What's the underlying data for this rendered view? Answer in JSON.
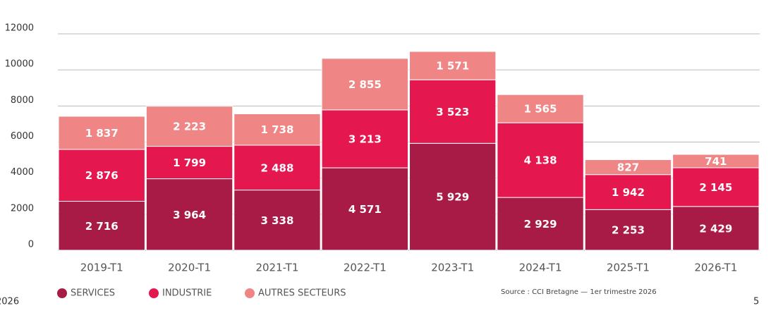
{
  "chart_data": {
    "type": "stacked_bar",
    "categories": [
      "2019-T1",
      "2020-T1",
      "2021-T1",
      "2022-T1",
      "2023-T1",
      "2024-T1",
      "2025-T1",
      "2026-T1"
    ],
    "series": [
      {
        "name": "SERVICES",
        "color": "#a71b46",
        "values": [
          2716,
          3964,
          3338,
          4571,
          5929,
          2929,
          2253,
          2429
        ],
        "value_labels": [
          "2 716",
          "3 964",
          "3 338",
          "4 571",
          "5 929",
          "2 929",
          "2 253",
          "2 429"
        ]
      },
      {
        "name": "INDUSTRIE",
        "color": "#e5174f",
        "values": [
          2876,
          1799,
          2488,
          3213,
          3523,
          4138,
          1942,
          2145
        ],
        "value_labels": [
          "2 876",
          "1 799",
          "2 488",
          "3 213",
          "3 523",
          "4 138",
          "1 942",
          "2 145"
        ]
      },
      {
        "name": "AUTRES SECTEURS",
        "color": "#ef8585",
        "values": [
          1837,
          2223,
          1738,
          2855,
          1571,
          1565,
          827,
          741
        ],
        "value_labels": [
          "1 837",
          "2 223",
          "1 738",
          "2 855",
          "1 571",
          "1 565",
          "827",
          "741"
        ]
      }
    ],
    "ylim": [
      0,
      12000
    ],
    "yticks": [
      0,
      2000,
      4000,
      6000,
      8000,
      10000,
      12000
    ],
    "grid": true,
    "source": "Source : CCI Bretagne — 1er trimestre 2026",
    "footer_left": "2026",
    "page_number": "5"
  }
}
